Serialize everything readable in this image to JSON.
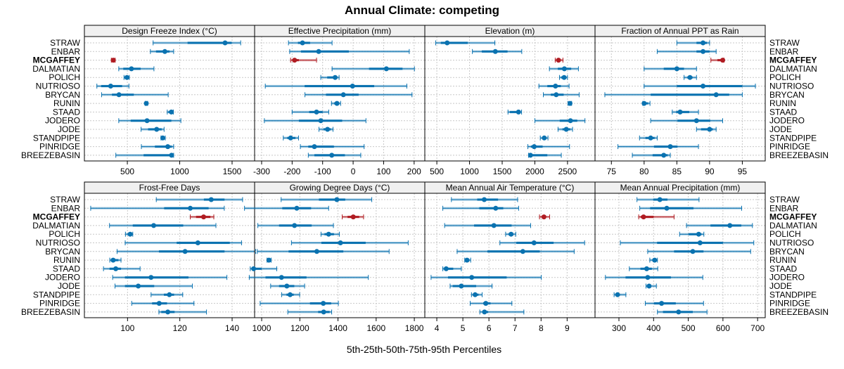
{
  "title": "Annual Climate: competing",
  "xlabel": "5th-25th-50th-75th-95th Percentiles",
  "sites": [
    "STRAW",
    "ENBAR",
    "MCGAFFEY",
    "DALMATIAN",
    "POLICH",
    "NUTRIOSO",
    "BRYCAN",
    "RUNIN",
    "STAAD",
    "JODERO",
    "JODE",
    "STANDPIPE",
    "PINRIDGE",
    "BREEZEBASIN"
  ],
  "highlight_site": "MCGAFFEY",
  "colors": {
    "series": "#0a72b0",
    "highlight": "#b01c22",
    "strip": "#f0f0f0",
    "grid": "#c8c8c8"
  },
  "chart_data": [
    {
      "type": "dotplot-interval",
      "title": "Design Freeze Index (°C)",
      "xlim": [
        90,
        1715
      ],
      "ticks": [
        500,
        1000,
        1500
      ],
      "values": [
        [
          746,
          1075,
          1433,
          1496,
          1582
        ],
        [
          720,
          774,
          858,
          903,
          942
        ],
        [
          347,
          353,
          366,
          375,
          384
        ],
        [
          418,
          461,
          539,
          627,
          754
        ],
        [
          468,
          478,
          496,
          509,
          519
        ],
        [
          209,
          250,
          341,
          450,
          515
        ],
        [
          254,
          353,
          420,
          562,
          890
        ],
        [
          670,
          675,
          681,
          687,
          694
        ],
        [
          881,
          892,
          920,
          931,
          940
        ],
        [
          418,
          532,
          688,
          920,
          1011
        ],
        [
          631,
          698,
          780,
          828,
          851
        ],
        [
          821,
          828,
          838,
          849,
          862
        ],
        [
          634,
          763,
          886,
          925,
          942
        ],
        [
          390,
          655,
          922,
          931,
          942
        ]
      ]
    },
    {
      "type": "dotplot-interval",
      "title": "Effective Precipitation (mm)",
      "xlim": [
        -323,
        235
      ],
      "ticks": [
        -300,
        -200,
        -100,
        0,
        100,
        200
      ],
      "values": [
        [
          -212,
          -181,
          -166,
          -141,
          -69
        ],
        [
          -208,
          -171,
          -113,
          -14,
          184
        ],
        [
          -205,
          -198,
          -192,
          -178,
          -120
        ],
        [
          -69,
          52,
          109,
          162,
          201
        ],
        [
          -106,
          -85,
          -59,
          -53,
          -46
        ],
        [
          -288,
          -159,
          -2,
          69,
          176
        ],
        [
          -158,
          -89,
          -32,
          18,
          193
        ],
        [
          -71,
          -62,
          -53,
          -46,
          -41
        ],
        [
          -200,
          -144,
          -120,
          -100,
          -80
        ],
        [
          -291,
          -178,
          -106,
          -36,
          42
        ],
        [
          -112,
          -97,
          -84,
          -73,
          -66
        ],
        [
          -229,
          -216,
          -205,
          -189,
          -179
        ],
        [
          -173,
          -147,
          -127,
          -63,
          36
        ],
        [
          -147,
          -127,
          -70,
          -27,
          25
        ]
      ]
    },
    {
      "type": "dotplot-interval",
      "title": "Elevation (m)",
      "xlim": [
        316,
        2921
      ],
      "ticks": [
        500,
        1000,
        1500,
        2000,
        2500
      ],
      "values": [
        [
          482,
          561,
          658,
          973,
          1388
        ],
        [
          1044,
          1188,
          1395,
          1582,
          1800
        ],
        [
          2312,
          2334,
          2362,
          2398,
          2430
        ],
        [
          2223,
          2352,
          2452,
          2556,
          2667
        ],
        [
          2377,
          2405,
          2448,
          2477,
          2499
        ],
        [
          2062,
          2191,
          2316,
          2398,
          2524
        ],
        [
          2130,
          2244,
          2327,
          2441,
          2678
        ],
        [
          2509,
          2520,
          2538,
          2552,
          2563
        ],
        [
          1589,
          1617,
          1750,
          1775,
          1797
        ],
        [
          2001,
          2380,
          2545,
          2649,
          2767
        ],
        [
          2355,
          2423,
          2481,
          2542,
          2577
        ],
        [
          2083,
          2112,
          2144,
          2176,
          2201
        ],
        [
          1893,
          1940,
          1990,
          2119,
          2531
        ],
        [
          1904,
          1918,
          1933,
          2191,
          2405
        ]
      ]
    },
    {
      "type": "dotplot-interval",
      "title": "Fraction of Annual PPT as Rain",
      "xlim": [
        72.5,
        98.5
      ],
      "ticks": [
        75,
        80,
        85,
        90,
        95
      ],
      "values": [
        [
          85,
          88,
          89,
          89.6,
          90
        ],
        [
          82,
          88,
          89,
          90,
          91
        ],
        [
          90.2,
          91.2,
          92,
          92.1,
          92.2
        ],
        [
          80,
          83,
          85,
          86.1,
          88
        ],
        [
          86.1,
          86.6,
          87,
          87.4,
          88
        ],
        [
          80,
          85,
          89,
          95,
          97
        ],
        [
          74,
          81,
          91,
          93,
          95
        ],
        [
          79.8,
          79.9,
          80,
          80.6,
          80.9
        ],
        [
          84.3,
          84.9,
          85.5,
          86.9,
          88.3
        ],
        [
          81,
          85.1,
          88,
          90.1,
          92
        ],
        [
          88,
          88.7,
          90,
          90.5,
          91
        ],
        [
          79.3,
          80.2,
          81,
          81.6,
          82
        ],
        [
          76,
          81.5,
          84,
          85.1,
          88.3
        ],
        [
          78.2,
          81.3,
          83,
          83.6,
          84
        ]
      ]
    },
    {
      "type": "dotplot-interval",
      "title": "Frost-Free Days",
      "xlim": [
        83.5,
        148.6
      ],
      "ticks": [
        100,
        120,
        140
      ],
      "values": [
        [
          111,
          129.2,
          132,
          137.1,
          144
        ],
        [
          85.9,
          114,
          124,
          131,
          137
        ],
        [
          124,
          126.2,
          129.1,
          131.7,
          133
        ],
        [
          93.1,
          102,
          110,
          121.3,
          133.8
        ],
        [
          99.2,
          100,
          101,
          101.5,
          102
        ],
        [
          99.1,
          118.8,
          126.9,
          139.1,
          143.6
        ],
        [
          96,
          112,
          122,
          137.1,
          149
        ],
        [
          93.2,
          93.6,
          94.5,
          96.5,
          97.5
        ],
        [
          90.8,
          93.1,
          95.5,
          97.5,
          104.8
        ],
        [
          94.3,
          99,
          109,
          123.3,
          138
        ],
        [
          95.2,
          99,
          104.1,
          110.2,
          124.8
        ],
        [
          109,
          113.9,
          116,
          117.8,
          121.1
        ],
        [
          101.6,
          109.4,
          112.1,
          115.1,
          125.4
        ],
        [
          112,
          112.9,
          115.4,
          118,
          130.2
        ]
      ]
    },
    {
      "type": "dotplot-interval",
      "title": "Growing Degree Days (°C)",
      "xlim": [
        963,
        1855
      ],
      "ticks": [
        1000,
        1200,
        1400,
        1600,
        1800
      ],
      "values": [
        [
          1102,
          1300,
          1394,
          1438,
          1577
        ],
        [
          910,
          1108,
          1184,
          1259,
          1351
        ],
        [
          1422,
          1450,
          1480,
          1511,
          1534
        ],
        [
          980,
          1091,
          1172,
          1262,
          1376
        ],
        [
          1311,
          1329,
          1351,
          1379,
          1407
        ],
        [
          1156,
          1313,
          1413,
          1545,
          1768
        ],
        [
          977,
          1141,
          1289,
          1428,
          1668
        ],
        [
          1028,
          1032,
          1038,
          1044,
          1050
        ],
        [
          940,
          949,
          958,
          1000,
          1079
        ],
        [
          935,
          1020,
          1104,
          1235,
          1559
        ],
        [
          1047,
          1091,
          1132,
          1171,
          1225
        ],
        [
          1105,
          1130,
          1149,
          1168,
          1199
        ],
        [
          992,
          1253,
          1323,
          1364,
          1402
        ],
        [
          1137,
          1296,
          1325,
          1356,
          1367
        ]
      ]
    },
    {
      "type": "dotplot-interval",
      "title": "Mean Annual Air Temperature (°C)",
      "xlim": [
        3.54,
        10.07
      ],
      "ticks": [
        4,
        5,
        6,
        7,
        8,
        9
      ],
      "values": [
        [
          4.56,
          5.55,
          5.82,
          6.35,
          7.1
        ],
        [
          4.23,
          5.63,
          6.26,
          6.55,
          7.14
        ],
        [
          7.94,
          8.05,
          8.11,
          8.19,
          8.33
        ],
        [
          4.3,
          5.43,
          6.19,
          6.87,
          7.6
        ],
        [
          6.64,
          6.75,
          6.85,
          6.94,
          7.03
        ],
        [
          6.42,
          7.05,
          7.73,
          8.48,
          9.67
        ],
        [
          4.78,
          5.94,
          7.3,
          7.95,
          9.27
        ],
        [
          5.07,
          5.11,
          5.16,
          5.23,
          5.3
        ],
        [
          4.23,
          4.28,
          4.36,
          4.63,
          4.94
        ],
        [
          3.78,
          4.43,
          5.34,
          6.68,
          8.01
        ],
        [
          4.51,
          4.61,
          4.94,
          5.51,
          6.12
        ],
        [
          5.33,
          5.4,
          5.47,
          5.6,
          5.74
        ],
        [
          5.28,
          5.78,
          5.88,
          6.06,
          6.88
        ],
        [
          5.65,
          5.76,
          5.83,
          5.97,
          7.34
        ]
      ]
    },
    {
      "type": "dotplot-interval",
      "title": "Mean Annual Precipitation (mm)",
      "xlim": [
        231,
        722
      ],
      "ticks": [
        300,
        400,
        500,
        600,
        700
      ],
      "values": [
        [
          352,
          399,
          418,
          440,
          531
        ],
        [
          360,
          390,
          438,
          515,
          654
        ],
        [
          357,
          363,
          371,
          400,
          459
        ],
        [
          495,
          564,
          620,
          653,
          685
        ],
        [
          475,
          501,
          530,
          538,
          545
        ],
        [
          304,
          410,
          534,
          600,
          689
        ],
        [
          383,
          459,
          513,
          544,
          680
        ],
        [
          389,
          397,
          403,
          407,
          411
        ],
        [
          330,
          362,
          380,
          395,
          412
        ],
        [
          261,
          319,
          383,
          450,
          542
        ],
        [
          378,
          382,
          387,
          393,
          408
        ],
        [
          286,
          291,
          296,
          303,
          320
        ],
        [
          376,
          401,
          423,
          464,
          544
        ],
        [
          411,
          427,
          472,
          513,
          554
        ]
      ]
    }
  ]
}
